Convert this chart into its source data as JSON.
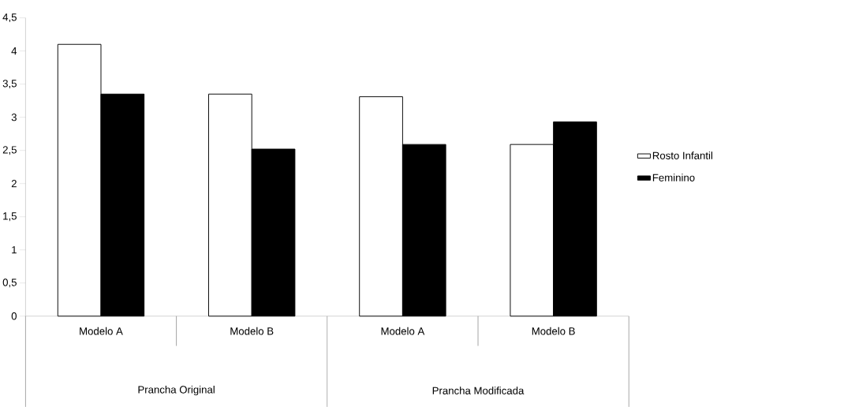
{
  "chart_data": {
    "type": "bar",
    "categories": [
      "Modelo A",
      "Modelo B",
      "Modelo A",
      "Modelo B"
    ],
    "series": [
      {
        "name": "Rosto Infantil",
        "color": "#ffffff",
        "values": [
          4.1,
          3.35,
          3.31,
          2.59
        ]
      },
      {
        "name": "Feminino",
        "color": "#000000",
        "values": [
          3.35,
          2.52,
          2.59,
          2.93
        ]
      }
    ],
    "ylim": [
      0,
      4.5
    ],
    "yticks": [
      0,
      {
        "value": 0.5,
        "label": "0,5"
      },
      1,
      {
        "value": 1.5,
        "label": "1,5"
      },
      2,
      {
        "value": 2.5,
        "label": "2,5"
      },
      3,
      {
        "value": 3.5,
        "label": "3,5"
      },
      4,
      {
        "value": 4.5,
        "label": "4,5"
      }
    ],
    "annotations": [
      "Prancha Original",
      "Prancha Modificada"
    ],
    "grid": false,
    "legend": "right"
  }
}
